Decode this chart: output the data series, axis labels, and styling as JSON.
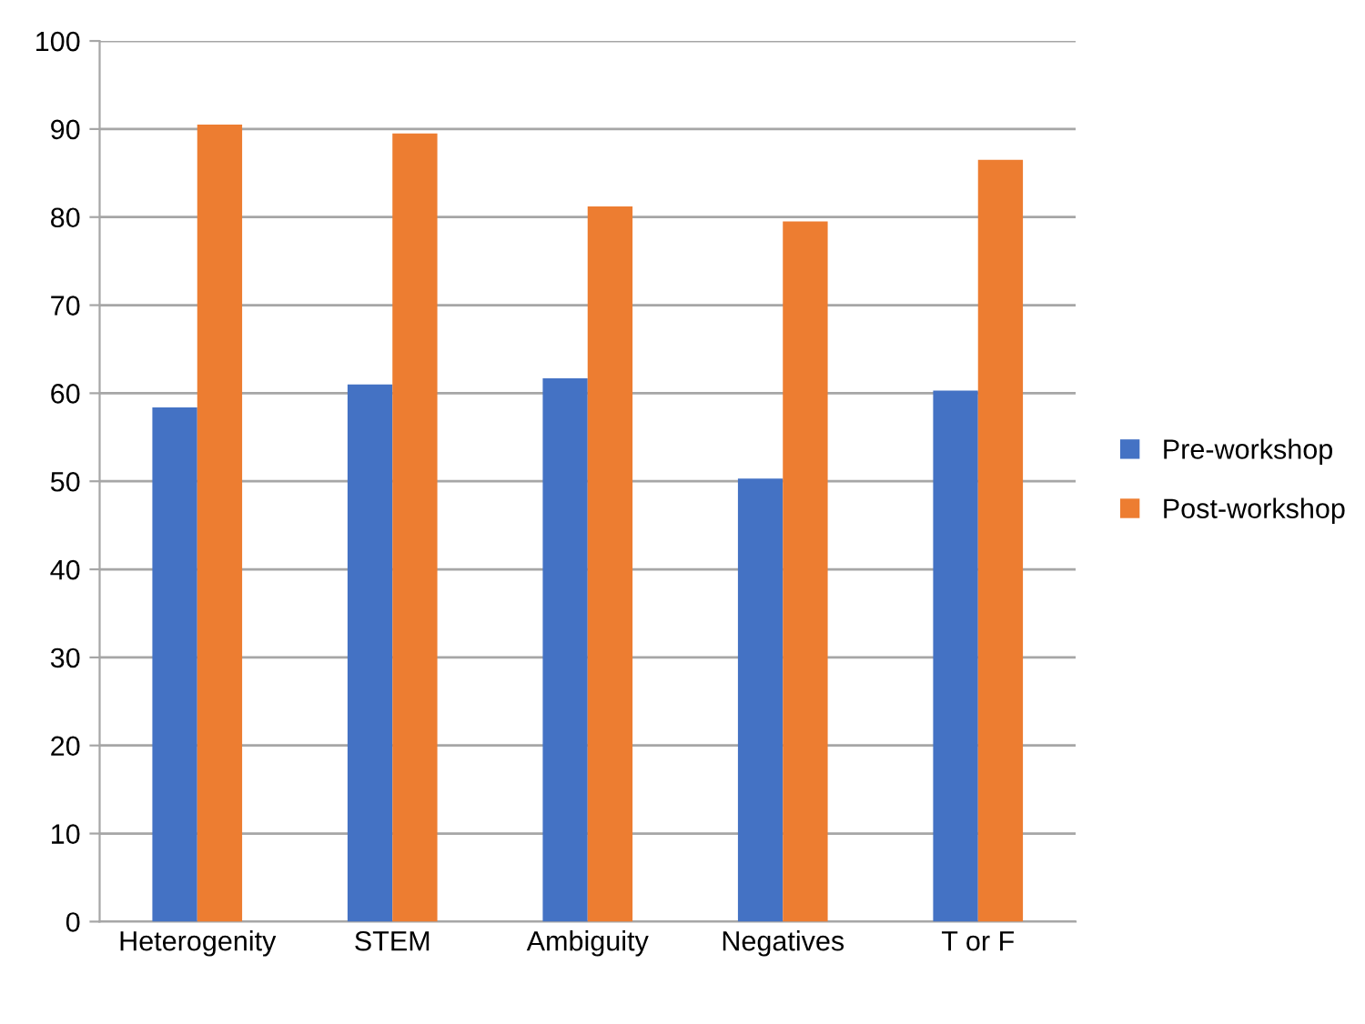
{
  "chart_data": {
    "type": "bar",
    "categories": [
      "Heterogenity",
      "STEM",
      "Ambiguity",
      "Negatives",
      "T or F"
    ],
    "series": [
      {
        "name": "Pre-workshop",
        "color": "#4472c4",
        "values": [
          58.4,
          61.0,
          61.7,
          50.3,
          60.3
        ]
      },
      {
        "name": "Post-workshop",
        "color": "#ed7d31",
        "values": [
          90.5,
          89.5,
          81.2,
          79.5,
          86.5
        ]
      }
    ],
    "ylim": [
      0,
      100
    ],
    "yticks": [
      0,
      10,
      20,
      30,
      40,
      50,
      60,
      70,
      80,
      90,
      100
    ],
    "grid": "y",
    "legend": "right"
  }
}
